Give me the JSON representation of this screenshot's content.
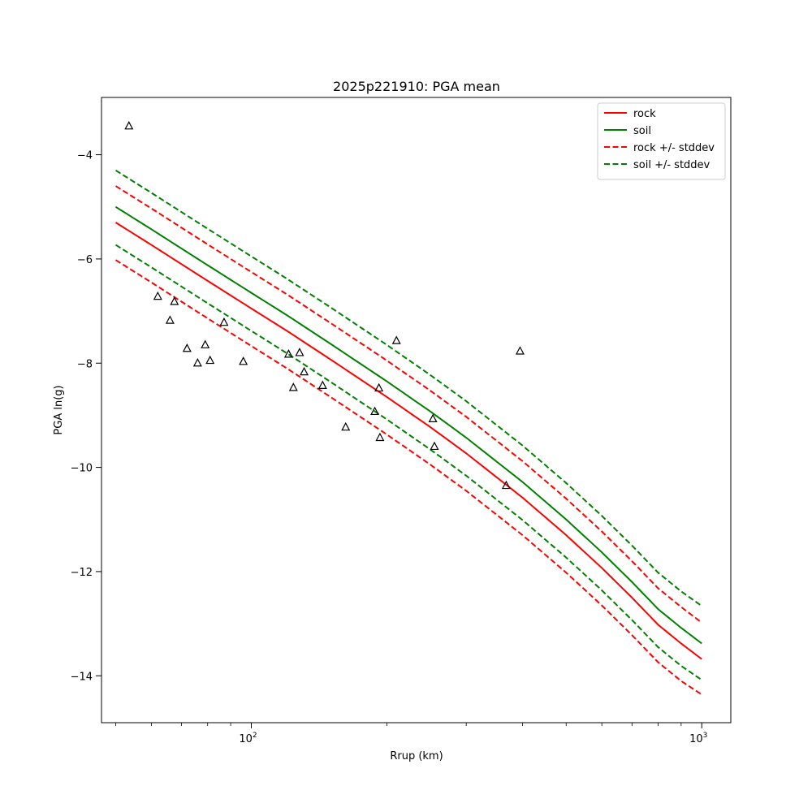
{
  "chart_data": {
    "type": "line",
    "title": "2025p221910: PGA mean",
    "xlabel": "Rrup (km)",
    "ylabel": "PGA ln(g)",
    "xscale": "log",
    "xlim": [
      46.5,
      1160
    ],
    "ylim": [
      -14.9,
      -2.9
    ],
    "x_major_ticks": [
      {
        "value": 100,
        "label": "10",
        "exp": "2"
      },
      {
        "value": 1000,
        "label": "10",
        "exp": "3"
      }
    ],
    "x_minor_ticks": [
      50,
      60,
      70,
      80,
      90,
      200,
      300,
      400,
      500,
      600,
      700,
      800,
      900
    ],
    "y_ticks": [
      {
        "value": -4,
        "label": "−4"
      },
      {
        "value": -6,
        "label": "−6"
      },
      {
        "value": -8,
        "label": "−8"
      },
      {
        "value": -10,
        "label": "−10"
      },
      {
        "value": -12,
        "label": "−12"
      },
      {
        "value": -14,
        "label": "−14"
      }
    ],
    "grid": false,
    "legend_position": "top-right",
    "series": [
      {
        "name": "rock",
        "color": "#ff0000",
        "style": "solid",
        "x": [
          50,
          60,
          70,
          80,
          100,
          120,
          150,
          200,
          250,
          300,
          400,
          500,
          600,
          700,
          800,
          900,
          1000
        ],
        "y": [
          -5.3,
          -5.73,
          -6.1,
          -6.42,
          -6.95,
          -7.38,
          -7.93,
          -8.65,
          -9.23,
          -9.73,
          -10.58,
          -11.3,
          -11.93,
          -12.5,
          -13.02,
          -13.38,
          -13.68
        ]
      },
      {
        "name": "soil",
        "color": "#008000",
        "style": "solid",
        "x": [
          50,
          60,
          70,
          80,
          100,
          120,
          150,
          200,
          250,
          300,
          400,
          500,
          600,
          700,
          800,
          900,
          1000
        ],
        "y": [
          -5.0,
          -5.43,
          -5.8,
          -6.12,
          -6.65,
          -7.08,
          -7.63,
          -8.35,
          -8.93,
          -9.43,
          -10.28,
          -11.0,
          -11.63,
          -12.2,
          -12.72,
          -13.08,
          -13.38
        ]
      },
      {
        "name": "rock +/- stddev",
        "color": "#ff0000",
        "style": "dashed",
        "x": [
          50,
          60,
          70,
          80,
          100,
          120,
          150,
          200,
          250,
          300,
          400,
          500,
          600,
          700,
          800,
          900,
          1000
        ],
        "y": [
          -4.6,
          -5.03,
          -5.4,
          -5.72,
          -6.25,
          -6.68,
          -7.23,
          -7.95,
          -8.53,
          -9.03,
          -9.88,
          -10.6,
          -11.23,
          -11.8,
          -12.32,
          -12.68,
          -12.98
        ]
      },
      {
        "name": "",
        "color": "#ff0000",
        "style": "dashed",
        "legend": false,
        "x": [
          50,
          60,
          70,
          80,
          100,
          120,
          150,
          200,
          250,
          300,
          400,
          500,
          600,
          700,
          800,
          900,
          1000
        ],
        "y": [
          -6.02,
          -6.45,
          -6.82,
          -7.14,
          -7.67,
          -8.1,
          -8.65,
          -9.37,
          -9.95,
          -10.45,
          -11.3,
          -12.02,
          -12.65,
          -13.22,
          -13.74,
          -14.1,
          -14.36
        ]
      },
      {
        "name": "soil +/- stddev",
        "color": "#008000",
        "style": "dashed",
        "x": [
          50,
          60,
          70,
          80,
          100,
          120,
          150,
          200,
          250,
          300,
          400,
          500,
          600,
          700,
          800,
          900,
          1000
        ],
        "y": [
          -4.3,
          -4.73,
          -5.1,
          -5.42,
          -5.95,
          -6.38,
          -6.93,
          -7.65,
          -8.23,
          -8.73,
          -9.58,
          -10.3,
          -10.93,
          -11.5,
          -12.02,
          -12.38,
          -12.66
        ]
      },
      {
        "name": "",
        "color": "#008000",
        "style": "dashed",
        "legend": false,
        "x": [
          50,
          60,
          70,
          80,
          100,
          120,
          150,
          200,
          250,
          300,
          400,
          500,
          600,
          700,
          800,
          900,
          1000
        ],
        "y": [
          -5.73,
          -6.16,
          -6.53,
          -6.85,
          -7.38,
          -7.81,
          -8.36,
          -9.08,
          -9.66,
          -10.16,
          -11.01,
          -11.73,
          -12.36,
          -12.93,
          -13.45,
          -13.81,
          -14.08
        ]
      }
    ],
    "observations": {
      "marker": "triangle",
      "color": "#000000",
      "x": [
        53.5,
        62,
        66,
        67.5,
        72,
        76,
        79,
        81,
        87,
        96,
        121,
        124,
        128,
        131,
        144,
        162,
        188,
        192,
        193,
        210,
        253,
        255,
        368,
        395
      ],
      "y": [
        -3.45,
        -6.72,
        -7.18,
        -6.82,
        -7.72,
        -8.0,
        -7.65,
        -7.95,
        -7.22,
        -7.97,
        -7.83,
        -8.47,
        -7.8,
        -8.17,
        -8.43,
        -9.23,
        -8.93,
        -8.48,
        -9.43,
        -7.57,
        -9.07,
        -9.6,
        -10.35,
        -7.77
      ]
    }
  }
}
